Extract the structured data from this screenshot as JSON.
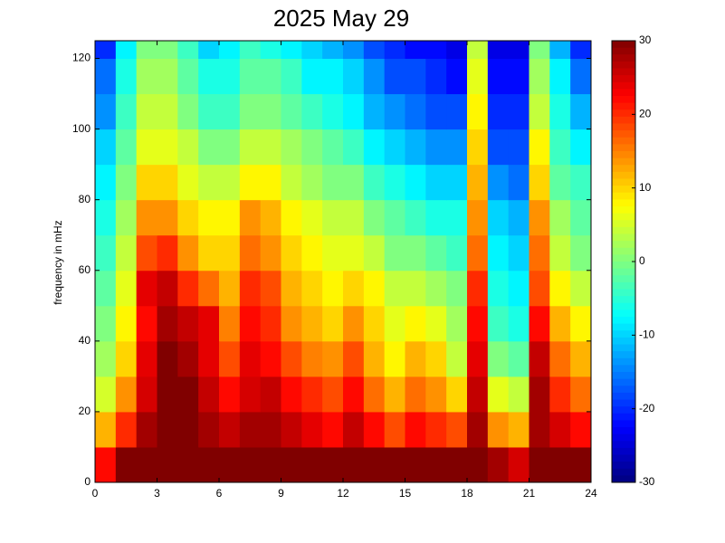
{
  "chart_data": {
    "type": "heatmap",
    "title": "2025 May 29",
    "y_label": "frequency in mHz",
    "x_bins": [
      0,
      1,
      2,
      3,
      4,
      5,
      6,
      7,
      8,
      9,
      10,
      11,
      12,
      13,
      14,
      15,
      16,
      17,
      18,
      19,
      20,
      21,
      22,
      23,
      24
    ],
    "y_bins": [
      0,
      10,
      20,
      30,
      40,
      50,
      60,
      70,
      80,
      90,
      100,
      110,
      120,
      125
    ],
    "values": [
      [
        22,
        30,
        30,
        30,
        30,
        30,
        30,
        30,
        30,
        30,
        30,
        30,
        30,
        30,
        30,
        30,
        30,
        30,
        30,
        28,
        25,
        30,
        30,
        30
      ],
      [
        12,
        20,
        28,
        30,
        30,
        28,
        26,
        28,
        28,
        26,
        24,
        22,
        26,
        22,
        18,
        22,
        20,
        18,
        28,
        14,
        12,
        28,
        25,
        22
      ],
      [
        5,
        14,
        25,
        30,
        30,
        26,
        22,
        25,
        26,
        22,
        20,
        18,
        22,
        16,
        12,
        16,
        14,
        10,
        26,
        6,
        4,
        28,
        20,
        16
      ],
      [
        2,
        10,
        24,
        30,
        28,
        24,
        18,
        24,
        22,
        18,
        15,
        14,
        18,
        12,
        8,
        12,
        10,
        4,
        24,
        0,
        -2,
        26,
        16,
        12
      ],
      [
        0,
        8,
        22,
        28,
        26,
        24,
        15,
        22,
        20,
        14,
        12,
        10,
        14,
        10,
        6,
        8,
        6,
        2,
        22,
        -4,
        -6,
        22,
        12,
        8
      ],
      [
        -2,
        6,
        24,
        26,
        20,
        16,
        12,
        20,
        18,
        12,
        10,
        8,
        10,
        8,
        4,
        4,
        2,
        0,
        20,
        -6,
        -8,
        18,
        8,
        4
      ],
      [
        -4,
        4,
        18,
        20,
        14,
        10,
        10,
        16,
        14,
        10,
        8,
        6,
        6,
        4,
        0,
        0,
        -2,
        -4,
        16,
        -8,
        -10,
        16,
        4,
        0
      ],
      [
        -6,
        2,
        14,
        14,
        10,
        8,
        8,
        14,
        12,
        8,
        6,
        4,
        4,
        0,
        -2,
        -4,
        -6,
        -6,
        14,
        -10,
        -12,
        14,
        2,
        -2
      ],
      [
        -8,
        0,
        10,
        10,
        6,
        4,
        4,
        8,
        8,
        4,
        2,
        0,
        0,
        -4,
        -6,
        -8,
        -10,
        -10,
        12,
        -14,
        -16,
        10,
        -2,
        -4
      ],
      [
        -10,
        -2,
        6,
        6,
        4,
        0,
        0,
        4,
        4,
        2,
        0,
        -2,
        -4,
        -8,
        -10,
        -12,
        -14,
        -14,
        10,
        -18,
        -18,
        8,
        -4,
        -8
      ],
      [
        -14,
        -4,
        4,
        4,
        0,
        -4,
        -4,
        0,
        0,
        -2,
        -4,
        -6,
        -8,
        -12,
        -14,
        -16,
        -18,
        -18,
        8,
        -20,
        -20,
        4,
        -6,
        -12
      ],
      [
        -16,
        -6,
        2,
        2,
        -2,
        -6,
        -6,
        -2,
        -2,
        -4,
        -8,
        -8,
        -10,
        -14,
        -18,
        -18,
        -20,
        -22,
        6,
        -22,
        -22,
        2,
        -8,
        -16
      ],
      [
        -20,
        -8,
        0,
        0,
        -4,
        -10,
        -8,
        -4,
        -6,
        -8,
        -10,
        -12,
        -14,
        -18,
        -20,
        -22,
        -22,
        -24,
        4,
        -24,
        -24,
        0,
        -12,
        -20
      ]
    ],
    "xlim": [
      0,
      24
    ],
    "xticks": [
      0,
      3,
      6,
      9,
      12,
      15,
      18,
      21,
      24
    ],
    "ylim": [
      0,
      125
    ],
    "yticks": [
      0,
      20,
      40,
      60,
      80,
      100,
      120
    ],
    "colormap": "jet",
    "clim": [
      -30,
      30
    ],
    "cticks": [
      -30,
      -20,
      -10,
      0,
      10,
      20,
      30
    ]
  }
}
